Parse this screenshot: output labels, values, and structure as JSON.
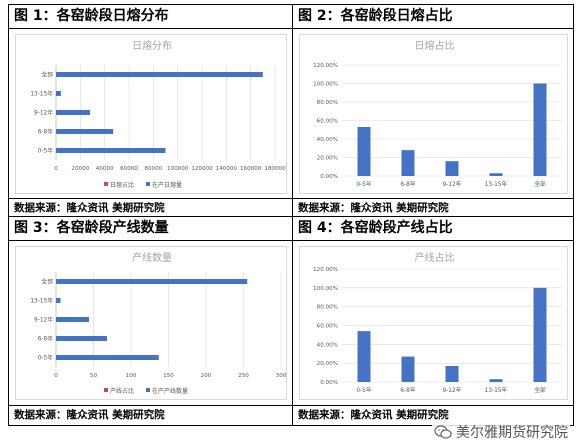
{
  "panels": [
    {
      "title": "图 1：各窑龄段日熔分布",
      "source": "数据来源：隆众资讯  美期研究院"
    },
    {
      "title": "图 2：各窑龄段日熔占比",
      "source": "数据来源：隆众资讯  美期研究院"
    },
    {
      "title": "图 3：各窑龄段产线数量",
      "source": "数据来源：隆众资讯  美期研究院"
    },
    {
      "title": "图 4：各窑龄段产线占比",
      "source": "数据来源：隆众资讯  美期研究院"
    }
  ],
  "watermark": "美尔雅期货研究院",
  "colors": {
    "primary": "#4472c4",
    "secondary": "#c0504d",
    "axis": "#595959",
    "grid": "#d9d9d9",
    "title": "#a6a6a6"
  },
  "chart_data": [
    {
      "type": "bar",
      "orientation": "horizontal",
      "title": "日熔分布",
      "categories": [
        "0-5年",
        "6-8年",
        "9-12年",
        "13-15年",
        "全部"
      ],
      "series": [
        {
          "name": "日熔占比",
          "values": [
            0,
            0,
            0,
            0,
            0
          ]
        },
        {
          "name": "在产日熔量",
          "values": [
            90000,
            47000,
            28000,
            4000,
            170000
          ]
        }
      ],
      "xlim": [
        0,
        180000
      ],
      "xticks": [
        "0",
        "20000",
        "40000",
        "60000",
        "80000",
        "100000",
        "120000",
        "140000",
        "160000",
        "180000"
      ],
      "legend": "bottom"
    },
    {
      "type": "bar",
      "title": "日熔占比",
      "categories": [
        "0-5年",
        "6-8年",
        "9-12年",
        "13-15年",
        "全部"
      ],
      "values": [
        0.53,
        0.28,
        0.16,
        0.03,
        1.0
      ],
      "ylim": [
        0,
        1.2
      ],
      "yticks": [
        "0.00%",
        "20.00%",
        "40.00%",
        "60.00%",
        "80.00%",
        "100.00%",
        "120.00%"
      ]
    },
    {
      "type": "bar",
      "orientation": "horizontal",
      "title": "产线数量",
      "categories": [
        "0-5年",
        "6-8年",
        "9-12年",
        "13-15年",
        "全部"
      ],
      "series": [
        {
          "name": "产线占比",
          "values": [
            0,
            0,
            0,
            0,
            0
          ]
        },
        {
          "name": "在产产线数量",
          "values": [
            137,
            68,
            44,
            6,
            255
          ]
        }
      ],
      "xlim": [
        0,
        300
      ],
      "xticks": [
        "0",
        "50",
        "100",
        "150",
        "200",
        "250",
        "300"
      ],
      "legend": "bottom"
    },
    {
      "type": "bar",
      "title": "产线占比",
      "categories": [
        "0-5年",
        "6-8年",
        "9-12年",
        "13-15年",
        "全部"
      ],
      "values": [
        0.54,
        0.27,
        0.17,
        0.03,
        1.0
      ],
      "ylim": [
        0,
        1.2
      ],
      "yticks": [
        "0.00%",
        "20.00%",
        "40.00%",
        "60.00%",
        "80.00%",
        "100.00%",
        "120.00%"
      ]
    }
  ]
}
